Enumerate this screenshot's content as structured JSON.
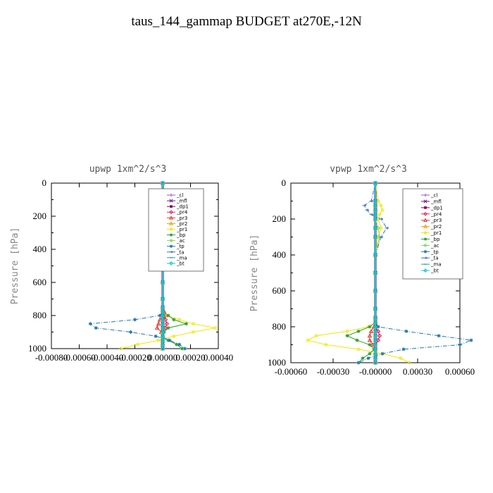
{
  "title": "taus_144_gammap  BUDGET at270E,-12N",
  "chart_data": [
    {
      "type": "line",
      "title": "upwp   1xm^2/s^3",
      "ylabel": "Pressure [hPa]",
      "xlabel": "",
      "xlim": [
        -0.0008,
        0.0004
      ],
      "ylim": [
        1000,
        0
      ],
      "xticks": [
        -0.0008,
        -0.0006,
        -0.0004,
        -0.0002,
        0.0,
        0.0002,
        0.0004
      ],
      "xtick_labels": [
        "-0.00080",
        "-0.00060",
        "-0.00040",
        "-0.00020",
        "0.00000",
        "0.00020",
        "0.00040"
      ],
      "yticks": [
        0,
        200,
        400,
        600,
        800,
        1000
      ],
      "ytick_labels": [
        "0",
        "200",
        "400",
        "600",
        "800",
        "1000"
      ],
      "legend_position": "top-right",
      "pressure": [
        0,
        100,
        125,
        150,
        175,
        200,
        250,
        300,
        400,
        500,
        600,
        700,
        750,
        775,
        800,
        825,
        850,
        875,
        900,
        925,
        950,
        975,
        1000
      ],
      "series": [
        {
          "name": "_cl",
          "color": "#9b59b6",
          "marker": "cross",
          "values": [
            0,
            0,
            0,
            0,
            0,
            0,
            0,
            0,
            0,
            0,
            0,
            0,
            0,
            0,
            0,
            0,
            0,
            0,
            0,
            0,
            0,
            0,
            0
          ]
        },
        {
          "name": "_mfl",
          "color": "#6a1b9a",
          "marker": "x",
          "values": [
            0,
            0,
            0,
            0,
            0,
            0,
            0,
            0,
            0,
            0,
            0,
            0,
            0,
            0,
            0,
            0,
            0,
            0,
            0,
            0,
            0,
            0,
            0
          ]
        },
        {
          "name": "_dp1",
          "color": "#8b0046",
          "marker": "square",
          "values": [
            0,
            0,
            0,
            0,
            0,
            0,
            0,
            0,
            0,
            0,
            0,
            0,
            0,
            0,
            0,
            0,
            0,
            0,
            0,
            0,
            0,
            0,
            0
          ]
        },
        {
          "name": "_pr4",
          "color": "#e0245e",
          "marker": "diamond",
          "values": [
            0,
            0,
            0,
            0,
            0,
            0,
            0,
            0,
            0,
            0,
            0,
            0,
            0,
            0,
            1e-05,
            2e-05,
            3e-05,
            2e-05,
            0,
            0,
            0,
            0,
            0
          ]
        },
        {
          "name": "_pr3",
          "color": "#e53935",
          "marker": "triangle",
          "values": [
            0,
            0,
            0,
            0,
            0,
            0,
            0,
            0,
            0,
            0,
            0,
            0,
            0,
            1e-05,
            2e-05,
            -2e-05,
            -3e-05,
            -4e-05,
            -1e-05,
            0,
            0,
            0,
            0
          ]
        },
        {
          "name": "_pr2",
          "color": "#ff9800",
          "marker": "triangle",
          "values": [
            0,
            0,
            0,
            0,
            0,
            0,
            0,
            0,
            0,
            0,
            0,
            0,
            0,
            0,
            0,
            0,
            0,
            0,
            0,
            0,
            0,
            0,
            0
          ]
        },
        {
          "name": "_pr1",
          "color": "#f2e600",
          "marker": "circle",
          "values": [
            0,
            -1e-05,
            -2e-05,
            -1e-05,
            0,
            0,
            0,
            0,
            0,
            0,
            0,
            0,
            0,
            0,
            3e-05,
            0.00012,
            0.00022,
            0.00038,
            0.00022,
            8e-05,
            -3e-05,
            -0.00018,
            -0.0003
          ]
        },
        {
          "name": "_bp",
          "color": "#2ca02c",
          "marker": "star",
          "values": [
            0,
            0,
            0,
            0,
            0,
            0,
            0,
            0,
            0,
            0,
            0,
            0,
            0,
            0,
            4e-05,
            8e-05,
            0.00017,
            4e-05,
            1e-05,
            0,
            4e-05,
            0.0001,
            0.00014
          ]
        },
        {
          "name": "_ac",
          "color": "#7fd957",
          "marker": "circle",
          "values": [
            0,
            0,
            0,
            0,
            0,
            0,
            0,
            0,
            0,
            0,
            0,
            0,
            0,
            0,
            0,
            0,
            0,
            0,
            0,
            0,
            0,
            0,
            0
          ]
        },
        {
          "name": "_tp",
          "color": "#1f77b4",
          "marker": "star",
          "values": [
            0,
            0,
            0,
            0,
            0,
            0,
            0,
            0,
            0,
            0,
            0,
            0,
            0,
            0,
            -2e-05,
            -0.0002,
            -0.00052,
            -0.00048,
            -0.00023,
            -5e-05,
            5e-05,
            0.00012,
            0.00016
          ]
        },
        {
          "name": "_ta",
          "color": "#3b6fd8",
          "marker": "arrow",
          "values": [
            0,
            0,
            0,
            -1e-05,
            -2e-05,
            -1e-05,
            0,
            0,
            0,
            0,
            0,
            0,
            0,
            0,
            0,
            0,
            0,
            0,
            0,
            0,
            0,
            0,
            0
          ]
        },
        {
          "name": "_ma",
          "color": "#2a9d8f",
          "marker": "dash",
          "values": [
            0,
            0,
            0,
            0,
            0,
            0,
            0,
            0,
            0,
            0,
            0,
            0,
            0,
            0,
            0,
            0,
            0,
            0,
            0,
            0,
            0,
            0,
            0
          ]
        },
        {
          "name": "_bt",
          "color": "#00c8d7",
          "marker": "diamond",
          "values": [
            0,
            0,
            0,
            0,
            0,
            0,
            0,
            0,
            0,
            0,
            0,
            0,
            0,
            0,
            0,
            0,
            0,
            0,
            0,
            0,
            0,
            0,
            0
          ]
        }
      ]
    },
    {
      "type": "line",
      "title": "vpwp   1xm^2/s^3",
      "ylabel": "Pressure [hPa]",
      "xlabel": "",
      "xlim": [
        -0.0006,
        0.0006
      ],
      "ylim": [
        1000,
        0
      ],
      "xticks": [
        -0.0006,
        -0.0003,
        0.0,
        0.0003,
        0.0006
      ],
      "xtick_labels": [
        "-0.00060",
        "-0.00030",
        "-0.00000",
        "0.00030",
        "0.00060"
      ],
      "yticks": [
        0,
        200,
        400,
        600,
        800,
        1000
      ],
      "ytick_labels": [
        "0",
        "200",
        "400",
        "600",
        "800",
        "1000"
      ],
      "legend_position": "top-right",
      "pressure": [
        0,
        100,
        125,
        150,
        175,
        200,
        250,
        300,
        400,
        500,
        600,
        700,
        750,
        775,
        800,
        825,
        850,
        875,
        900,
        925,
        950,
        975,
        1000
      ],
      "series": [
        {
          "name": "_cl",
          "color": "#9b59b6",
          "marker": "cross",
          "values": [
            0,
            0,
            0,
            0,
            0,
            0,
            0,
            0,
            0,
            0,
            0,
            0,
            0,
            0,
            0,
            0,
            0,
            0,
            0,
            0,
            0,
            0,
            0
          ]
        },
        {
          "name": "_mfl",
          "color": "#6a1b9a",
          "marker": "x",
          "values": [
            0,
            0,
            0,
            0,
            0,
            0,
            0,
            0,
            0,
            0,
            0,
            0,
            0,
            0,
            0,
            0,
            0,
            0,
            0,
            0,
            0,
            0,
            0
          ]
        },
        {
          "name": "_dp1",
          "color": "#8b0046",
          "marker": "square",
          "values": [
            0,
            0,
            0,
            0,
            0,
            0,
            0,
            0,
            0,
            0,
            0,
            0,
            0,
            0,
            0,
            0,
            0,
            0,
            0,
            0,
            0,
            0,
            0
          ]
        },
        {
          "name": "_pr4",
          "color": "#e0245e",
          "marker": "diamond",
          "values": [
            0,
            0,
            0,
            0,
            0,
            0,
            0,
            0,
            0,
            0,
            0,
            0,
            0,
            0,
            0,
            2e-05,
            3e-05,
            2e-05,
            0,
            0,
            0,
            0,
            0
          ]
        },
        {
          "name": "_pr3",
          "color": "#e53935",
          "marker": "triangle",
          "values": [
            0,
            0,
            0,
            0,
            0,
            0,
            0,
            0,
            0,
            0,
            0,
            0,
            0,
            0,
            -1e-05,
            -3e-05,
            -4e-05,
            -4e-05,
            -2e-05,
            0,
            0,
            0,
            0
          ]
        },
        {
          "name": "_pr2",
          "color": "#ff9800",
          "marker": "triangle",
          "values": [
            0,
            0,
            0,
            0,
            0,
            0,
            0,
            0,
            0,
            0,
            0,
            0,
            0,
            0,
            0,
            0,
            0,
            0,
            0,
            0,
            0,
            0,
            0
          ]
        },
        {
          "name": "_pr1",
          "color": "#f2e600",
          "marker": "circle",
          "values": [
            0,
            2e-05,
            4e-05,
            5e-05,
            3e-05,
            2e-05,
            4e-05,
            2e-05,
            0,
            0,
            0,
            0,
            0,
            0,
            -5e-05,
            -0.0002,
            -0.00042,
            -0.00048,
            -0.00035,
            -0.00012,
            5e-05,
            0.00018,
            0.00024
          ]
        },
        {
          "name": "_bp",
          "color": "#2ca02c",
          "marker": "star",
          "values": [
            0,
            0,
            0,
            0,
            0,
            0,
            0,
            0,
            0,
            0,
            0,
            0,
            0,
            0,
            -4e-05,
            -0.00012,
            -0.0002,
            -0.00013,
            -4e-05,
            -1e-05,
            -4e-05,
            -9e-05,
            -0.00012
          ]
        },
        {
          "name": "_ac",
          "color": "#7fd957",
          "marker": "circle",
          "values": [
            0,
            0,
            0,
            0,
            0,
            0,
            2e-05,
            3e-05,
            0,
            0,
            0,
            0,
            0,
            0,
            0,
            0,
            0,
            0,
            0,
            0,
            0,
            0,
            0
          ]
        },
        {
          "name": "_tp",
          "color": "#1f77b4",
          "marker": "star",
          "values": [
            0,
            0,
            0,
            0,
            0,
            0,
            0,
            0,
            0,
            0,
            0,
            0,
            0,
            0,
            2e-05,
            0.00022,
            0.00045,
            0.00068,
            0.0006,
            0.0002,
            5e-05,
            -5e-05,
            -0.00012
          ]
        },
        {
          "name": "_ta",
          "color": "#3b6fd8",
          "marker": "arrow",
          "values": [
            0,
            -3e-05,
            -8e-05,
            -6e-05,
            -3e-05,
            4e-05,
            8e-05,
            4e-05,
            0,
            0,
            0,
            0,
            0,
            0,
            0,
            0,
            0,
            0,
            0,
            0,
            0,
            0,
            0
          ]
        },
        {
          "name": "_ma",
          "color": "#2a9d8f",
          "marker": "dash",
          "values": [
            0,
            0,
            0,
            0,
            0,
            0,
            0,
            0,
            0,
            0,
            0,
            0,
            0,
            0,
            0,
            0,
            0,
            0,
            0,
            0,
            0,
            0,
            0
          ]
        },
        {
          "name": "_bt",
          "color": "#00c8d7",
          "marker": "diamond",
          "values": [
            0,
            0,
            0,
            0,
            0,
            0,
            0,
            0,
            0,
            0,
            0,
            0,
            0,
            0,
            0,
            0,
            0,
            0,
            0,
            0,
            0,
            0,
            0
          ]
        }
      ]
    }
  ]
}
